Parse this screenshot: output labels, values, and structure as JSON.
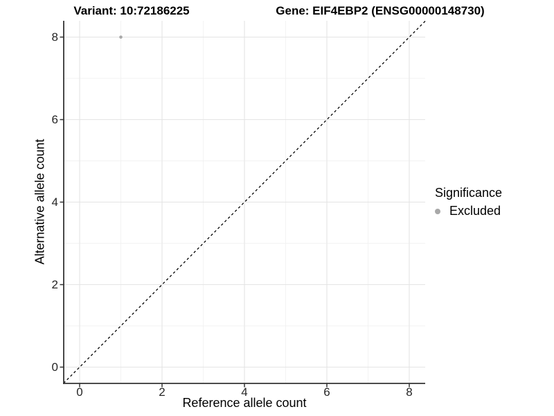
{
  "chart_data": {
    "type": "scatter",
    "title_left": "Variant: 10:72186225",
    "title_right": "Gene: EIF4EBP2 (ENSG00000148730)",
    "xlabel": "Reference allele count",
    "ylabel": "Alternative allele count",
    "xlim": [
      -0.39,
      8.39
    ],
    "ylim": [
      -0.39,
      8.39
    ],
    "x_major_ticks": [
      0,
      2,
      4,
      6,
      8
    ],
    "y_major_ticks": [
      0,
      2,
      4,
      6,
      8
    ],
    "x_minor_ticks": [
      1,
      3,
      5,
      7
    ],
    "y_minor_ticks": [
      1,
      3,
      5,
      7
    ],
    "grid": true,
    "reference_line": {
      "type": "identity",
      "style": "dashed",
      "color": "#000000"
    },
    "series": [
      {
        "name": "Excluded",
        "color": "#a8a8a8",
        "points": [
          {
            "x": 1,
            "y": 8
          }
        ]
      }
    ],
    "legend": {
      "title": "Significance",
      "position": "right",
      "items": [
        {
          "label": "Excluded",
          "color": "#a8a8a8"
        }
      ]
    }
  },
  "colors": {
    "background": "#ffffff",
    "grid_major": "#e4e4e4",
    "grid_minor": "#f2f2f2",
    "axis": "#333333",
    "point": "#a8a8a8",
    "title_text": "#000000",
    "tick_text": "#262626"
  }
}
